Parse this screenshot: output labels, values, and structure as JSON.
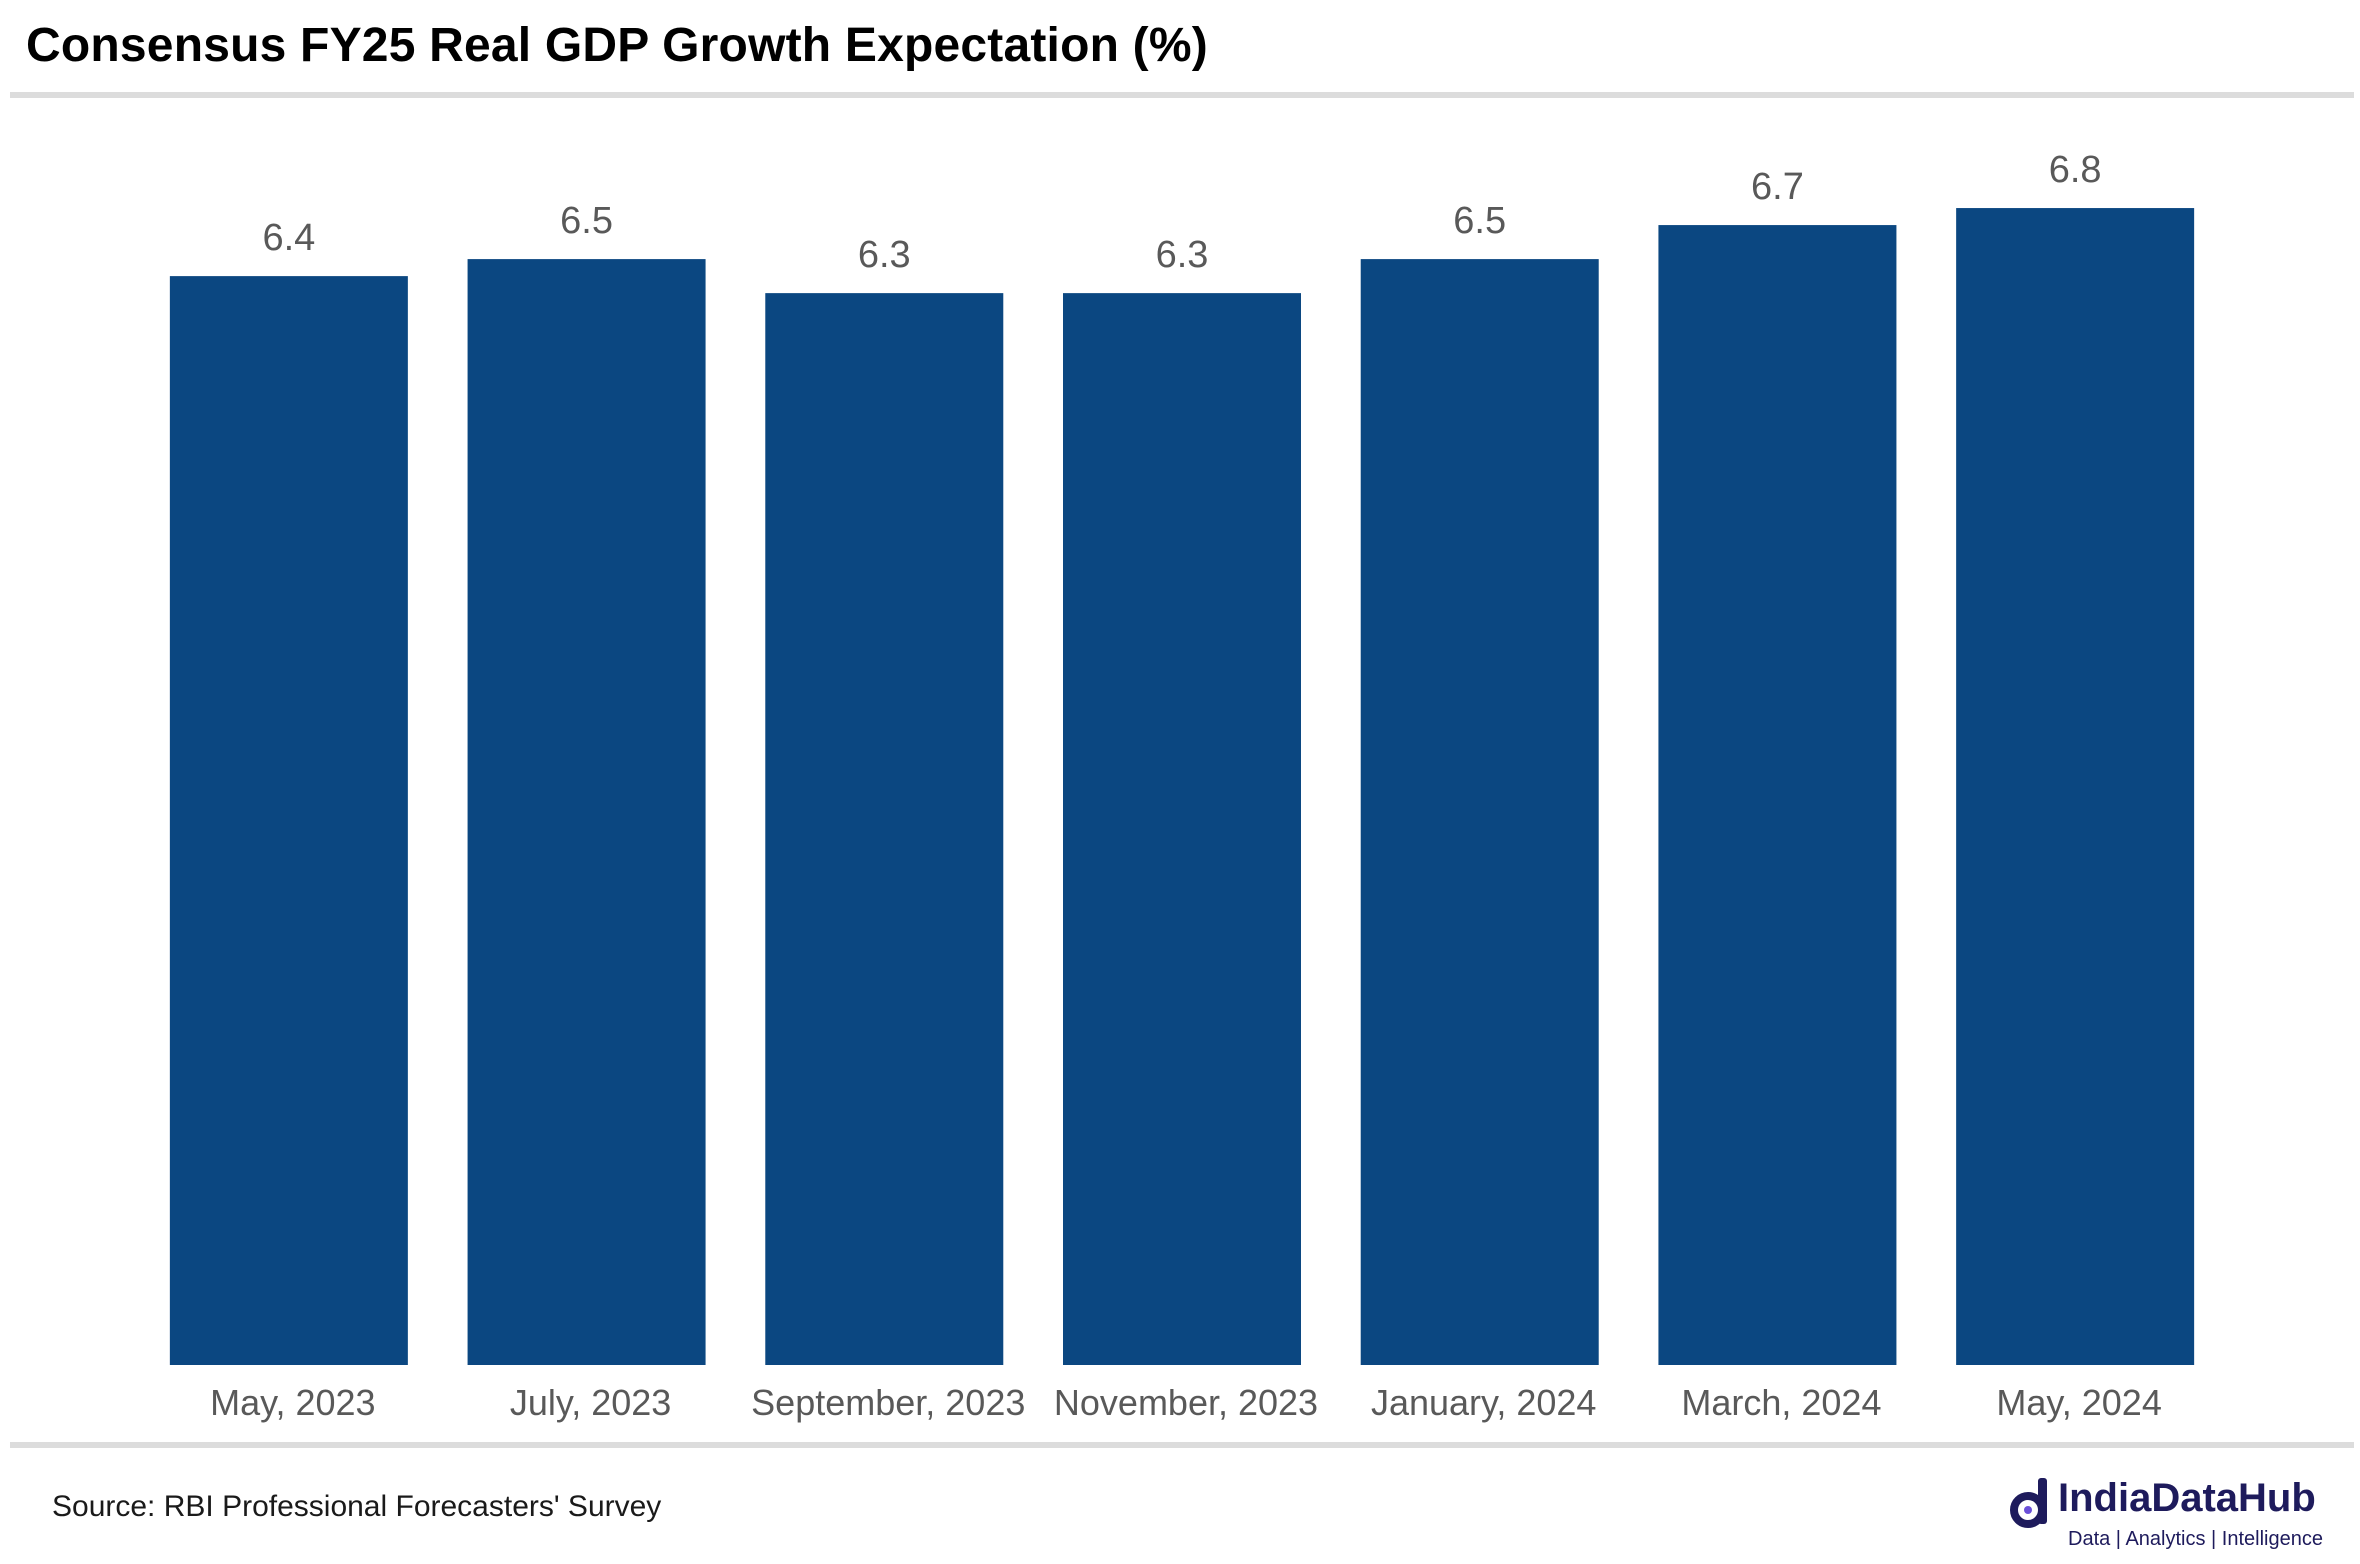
{
  "title": "Consensus FY25 Real GDP Growth Expectation (%)",
  "source": "Source: RBI Professional Forecasters' Survey",
  "brand": {
    "name": "IndiaDataHub",
    "tagline": "Data | Analytics | Intelligence",
    "color": "#1e1b5c",
    "icon": "indiadatahub-logo-icon"
  },
  "colors": {
    "bar": "#0b4781",
    "label": "#595959"
  },
  "chart_data": {
    "type": "bar",
    "title": "Consensus FY25 Real GDP Growth Expectation (%)",
    "categories": [
      "May, 2023",
      "July, 2023",
      "September, 2023",
      "November, 2023",
      "January, 2024",
      "March, 2024",
      "May, 2024"
    ],
    "values": [
      6.4,
      6.5,
      6.3,
      6.3,
      6.5,
      6.7,
      6.8
    ],
    "value_labels": [
      "6.4",
      "6.5",
      "6.3",
      "6.3",
      "6.5",
      "6.7",
      "6.8"
    ],
    "xlabel": "",
    "ylabel": "",
    "ylim": [
      0,
      7.2
    ],
    "grid": false,
    "legend": "none",
    "data_labels": "above bars",
    "y_axis_visible": false
  }
}
